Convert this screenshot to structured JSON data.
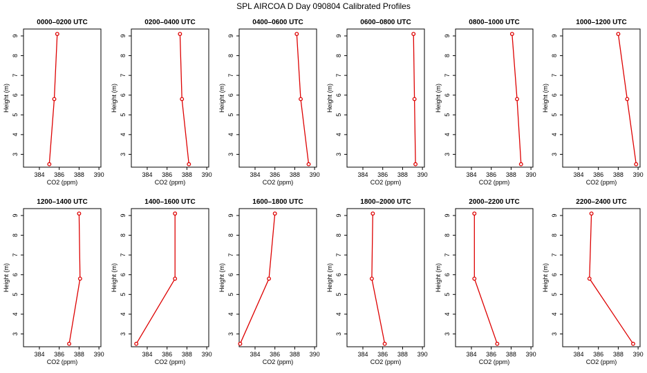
{
  "figure": {
    "title": "SPL AIRCOA D  Day 090804  Calibrated Profiles"
  },
  "chart_data": {
    "type": "line",
    "title": "SPL AIRCOA D  Day 090804  Calibrated Profiles",
    "xlabel": "CO2 (ppm)",
    "ylabel": "Height (m)",
    "xlim": [
      382.4,
      390.2
    ],
    "ylim": [
      2.35,
      9.35
    ],
    "x_ticks": [
      384,
      386,
      388,
      390
    ],
    "y_ticks": [
      3,
      4,
      5,
      6,
      7,
      8,
      9
    ],
    "color": "#dd0000",
    "heights": [
      9.1,
      5.8,
      2.5
    ],
    "panels": [
      {
        "title": "0000–0200 UTC",
        "co2": [
          385.8,
          385.5,
          385.0
        ]
      },
      {
        "title": "0200–0400 UTC",
        "co2": [
          387.3,
          387.5,
          388.2
        ]
      },
      {
        "title": "0400–0600 UTC",
        "co2": [
          388.2,
          388.6,
          389.4
        ]
      },
      {
        "title": "0600–0800 UTC",
        "co2": [
          389.1,
          389.2,
          389.3
        ]
      },
      {
        "title": "0800–1000 UTC",
        "co2": [
          388.1,
          388.6,
          389.0
        ]
      },
      {
        "title": "1000–1200 UTC",
        "co2": [
          388.0,
          388.9,
          389.8
        ]
      },
      {
        "title": "1200–1400 UTC",
        "co2": [
          388.0,
          388.1,
          387.0
        ]
      },
      {
        "title": "1400–1600 UTC",
        "co2": [
          386.8,
          386.8,
          382.9
        ]
      },
      {
        "title": "1600–1800 UTC",
        "co2": [
          386.0,
          385.4,
          382.5
        ]
      },
      {
        "title": "1800–2000 UTC",
        "co2": [
          385.0,
          384.9,
          386.2
        ]
      },
      {
        "title": "2000–2200 UTC",
        "co2": [
          384.3,
          384.3,
          386.6
        ]
      },
      {
        "title": "2200–2400 UTC",
        "co2": [
          385.3,
          385.1,
          389.5
        ]
      }
    ]
  }
}
